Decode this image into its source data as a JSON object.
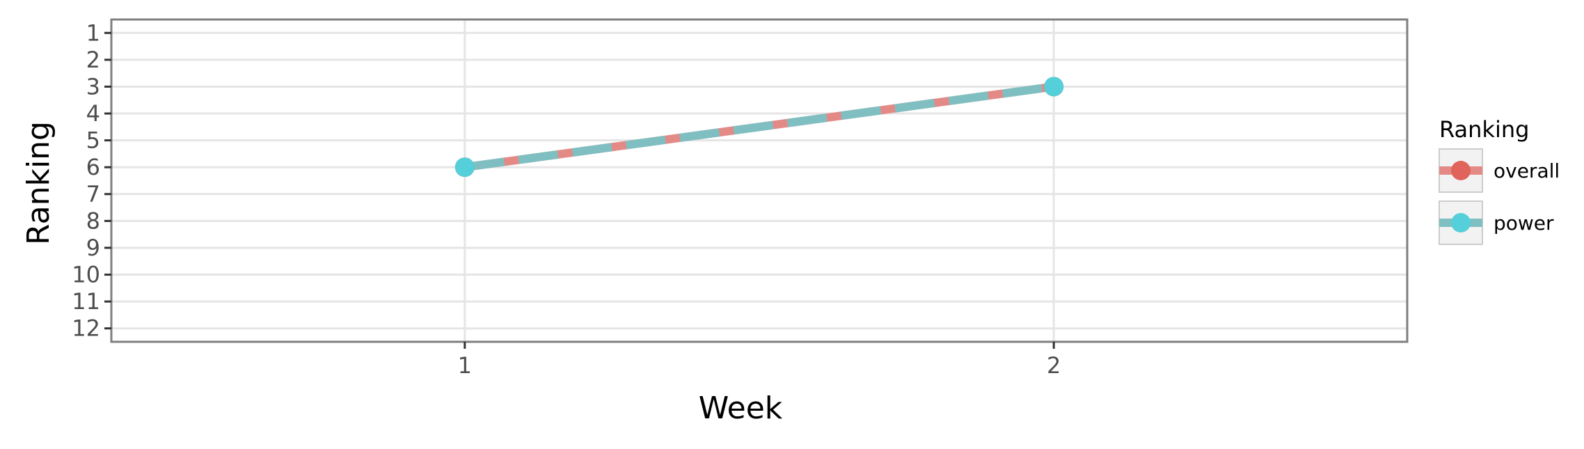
{
  "chart_data": {
    "type": "line",
    "xlabel": "Week",
    "ylabel": "Ranking",
    "x": [
      1,
      2
    ],
    "x_ticks": [
      "1",
      "2"
    ],
    "xlim": [
      0.4,
      2.6
    ],
    "y_ticks": [
      "1",
      "2",
      "3",
      "4",
      "5",
      "6",
      "7",
      "8",
      "9",
      "10",
      "11",
      "12"
    ],
    "ylim": [
      12.5,
      0.5
    ],
    "y_reversed": true,
    "grid": true,
    "legend_placement": "right",
    "legend_title": "Ranking",
    "series": [
      {
        "name": "overall",
        "values": [
          6,
          3
        ],
        "color": "#E0635C",
        "line_color": "#E38A87",
        "dashed": false
      },
      {
        "name": "power",
        "values": [
          6,
          3
        ],
        "color": "#55CFD9",
        "line_color": "#7FBFC2",
        "dashed": true
      }
    ]
  }
}
